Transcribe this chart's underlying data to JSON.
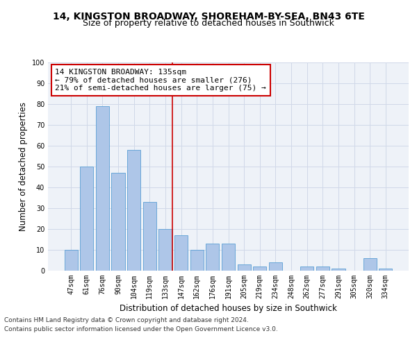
{
  "title_line1": "14, KINGSTON BROADWAY, SHOREHAM-BY-SEA, BN43 6TE",
  "title_line2": "Size of property relative to detached houses in Southwick",
  "xlabel": "Distribution of detached houses by size in Southwick",
  "ylabel": "Number of detached properties",
  "categories": [
    "47sqm",
    "61sqm",
    "76sqm",
    "90sqm",
    "104sqm",
    "119sqm",
    "133sqm",
    "147sqm",
    "162sqm",
    "176sqm",
    "191sqm",
    "205sqm",
    "219sqm",
    "234sqm",
    "248sqm",
    "262sqm",
    "277sqm",
    "291sqm",
    "305sqm",
    "320sqm",
    "334sqm"
  ],
  "values": [
    10,
    50,
    79,
    47,
    58,
    33,
    20,
    17,
    10,
    13,
    13,
    3,
    2,
    4,
    0,
    2,
    2,
    1,
    0,
    6,
    1
  ],
  "bar_color": "#aec6e8",
  "bar_edge_color": "#5a9fd4",
  "highlight_line_index": 6,
  "highlight_line_color": "#cc0000",
  "annotation_text": "14 KINGSTON BROADWAY: 135sqm\n← 79% of detached houses are smaller (276)\n21% of semi-detached houses are larger (75) →",
  "annotation_box_color": "#ffffff",
  "annotation_box_edge_color": "#cc0000",
  "ylim": [
    0,
    100
  ],
  "yticks": [
    0,
    10,
    20,
    30,
    40,
    50,
    60,
    70,
    80,
    90,
    100
  ],
  "grid_color": "#d0d8e8",
  "background_color": "#eef2f8",
  "footer_line1": "Contains HM Land Registry data © Crown copyright and database right 2024.",
  "footer_line2": "Contains public sector information licensed under the Open Government Licence v3.0.",
  "title_fontsize": 10,
  "subtitle_fontsize": 9,
  "tick_fontsize": 7,
  "ylabel_fontsize": 8.5,
  "xlabel_fontsize": 8.5,
  "annotation_fontsize": 8,
  "footer_fontsize": 6.5
}
